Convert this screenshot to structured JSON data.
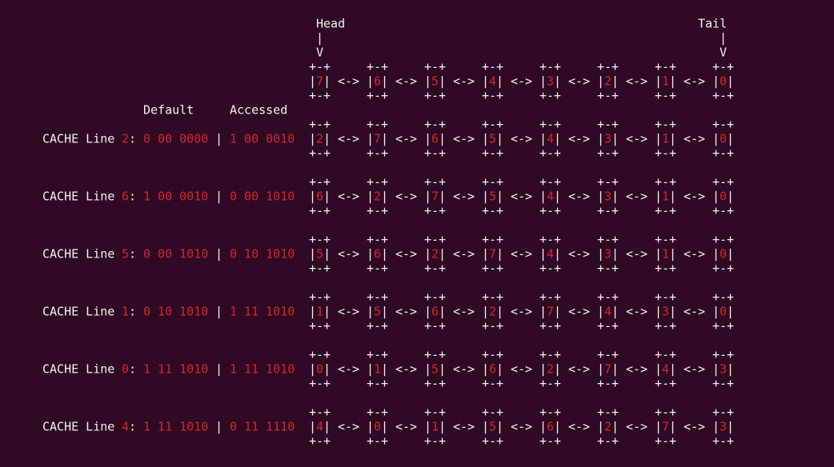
{
  "header": {
    "head": "Head",
    "tail": "Tail",
    "pointer": "|",
    "arrow": "V"
  },
  "glyphs": {
    "box_edge": "+-+",
    "bar": "|",
    "link": "<->",
    "colon": ":",
    "separator": "|"
  },
  "top_list": [
    7,
    6,
    5,
    4,
    3,
    2,
    1,
    0
  ],
  "columns": {
    "default": "Default",
    "accessed": "Accessed"
  },
  "rows": [
    {
      "label": "CACHE Line",
      "line": 2,
      "default": "0 00 0000",
      "accessed": "1 00 0010",
      "list": [
        2,
        7,
        6,
        5,
        4,
        3,
        1,
        0
      ]
    },
    {
      "label": "CACHE Line",
      "line": 6,
      "default": "1 00 0010",
      "accessed": "0 00 1010",
      "list": [
        6,
        2,
        7,
        5,
        4,
        3,
        1,
        0
      ]
    },
    {
      "label": "CACHE Line",
      "line": 5,
      "default": "0 00 1010",
      "accessed": "0 10 1010",
      "list": [
        5,
        6,
        2,
        7,
        4,
        3,
        1,
        0
      ]
    },
    {
      "label": "CACHE Line",
      "line": 1,
      "default": "0 10 1010",
      "accessed": "1 11 1010",
      "list": [
        1,
        5,
        6,
        2,
        7,
        4,
        3,
        0
      ]
    },
    {
      "label": "CACHE Line",
      "line": 0,
      "default": "1 11 1010",
      "accessed": "1 11 1010",
      "list": [
        0,
        1,
        5,
        6,
        2,
        7,
        4,
        3
      ]
    },
    {
      "label": "CACHE Line",
      "line": 4,
      "default": "1 11 1010",
      "accessed": "0 11 1110",
      "list": [
        4,
        0,
        1,
        5,
        6,
        2,
        7,
        3
      ]
    }
  ],
  "colors": {
    "background": "#300a24",
    "text": "#f2f2f2",
    "value": "#d6242f"
  }
}
